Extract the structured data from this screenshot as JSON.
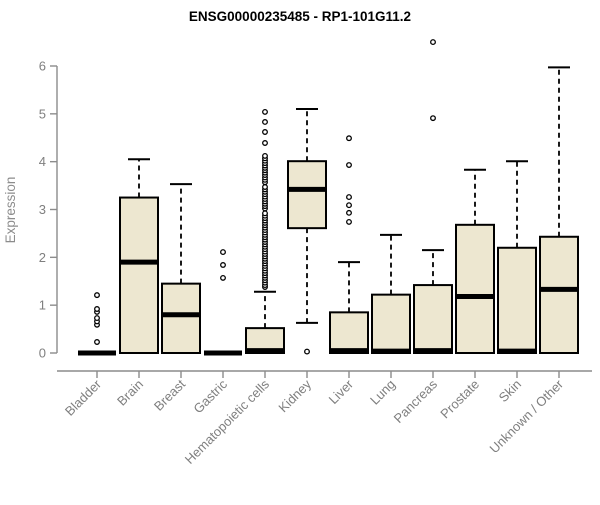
{
  "chart_data": {
    "type": "boxplot",
    "title": "ENSG00000235485 - RP1-101G11.2",
    "ylabel": "Expression",
    "xlabel": "",
    "ylim": [
      0,
      6.6
    ],
    "yticks": [
      0,
      1,
      2,
      3,
      4,
      5,
      6
    ],
    "grid": false,
    "legend": "none",
    "categories": [
      "Bladder",
      "Brain",
      "Breast",
      "Gastric",
      "Hematopoietic cells",
      "Kidney",
      "Liver",
      "Lung",
      "Pancreas",
      "Prostate",
      "Skin",
      "Unknown / Other"
    ],
    "boxes": [
      {
        "label": "Bladder",
        "whisker_low": 0,
        "q1": 0,
        "median": 0,
        "q3": 0,
        "whisker_high": 0,
        "outliers": [
          0.23,
          0.59,
          0.66,
          0.73,
          0.86,
          0.92,
          1.21
        ]
      },
      {
        "label": "Brain",
        "whisker_low": 0,
        "q1": 0,
        "median": 1.9,
        "q3": 3.25,
        "whisker_high": 4.05,
        "outliers": []
      },
      {
        "label": "Breast",
        "whisker_low": 0,
        "q1": 0,
        "median": 0.8,
        "q3": 1.45,
        "whisker_high": 3.53,
        "outliers": []
      },
      {
        "label": "Gastric",
        "whisker_low": 0,
        "q1": 0,
        "median": 0,
        "q3": 0,
        "whisker_high": 0,
        "outliers": [
          1.57,
          1.84,
          2.11
        ]
      },
      {
        "label": "Hematopoietic cells",
        "whisker_low": 0,
        "q1": 0,
        "median": 0.05,
        "q3": 0.52,
        "whisker_high": 1.28,
        "outliers": [
          1.38,
          1.42,
          1.47,
          1.52,
          1.57,
          1.62,
          1.67,
          1.72,
          1.77,
          1.82,
          1.87,
          1.92,
          1.97,
          2.02,
          2.07,
          2.12,
          2.17,
          2.22,
          2.27,
          2.32,
          2.37,
          2.42,
          2.47,
          2.52,
          2.57,
          2.62,
          2.67,
          2.72,
          2.77,
          2.82,
          2.87,
          2.92,
          3.02,
          3.07,
          3.12,
          3.17,
          3.22,
          3.27,
          3.32,
          3.37,
          3.42,
          3.47,
          3.57,
          3.62,
          3.67,
          3.72,
          3.77,
          3.82,
          3.87,
          3.92,
          3.97,
          4.02,
          4.07,
          4.12,
          4.39,
          4.62,
          4.83,
          5.04
        ]
      },
      {
        "label": "Kidney",
        "whisker_low": 0.63,
        "q1": 2.61,
        "median": 3.42,
        "q3": 4.01,
        "whisker_high": 5.1,
        "outliers": [
          0.03
        ]
      },
      {
        "label": "Liver",
        "whisker_low": 0,
        "q1": 0,
        "median": 0.05,
        "q3": 0.85,
        "whisker_high": 1.9,
        "outliers": [
          2.74,
          2.93,
          3.09,
          3.26,
          3.93,
          4.49
        ]
      },
      {
        "label": "Lung",
        "whisker_low": 0,
        "q1": 0,
        "median": 0.04,
        "q3": 1.22,
        "whisker_high": 2.47,
        "outliers": []
      },
      {
        "label": "Pancreas",
        "whisker_low": 0,
        "q1": 0,
        "median": 0.05,
        "q3": 1.42,
        "whisker_high": 2.15,
        "outliers": [
          4.91,
          6.5
        ]
      },
      {
        "label": "Prostate",
        "whisker_low": 0,
        "q1": 0,
        "median": 1.18,
        "q3": 2.68,
        "whisker_high": 3.83,
        "outliers": []
      },
      {
        "label": "Skin",
        "whisker_low": 0,
        "q1": 0,
        "median": 0.04,
        "q3": 2.2,
        "whisker_high": 4.01,
        "outliers": []
      },
      {
        "label": "Unknown / Other",
        "whisker_low": 0,
        "q1": 0,
        "median": 1.33,
        "q3": 2.43,
        "whisker_high": 5.97,
        "outliers": []
      }
    ]
  },
  "style": {
    "box_fill": "#EDE7D0",
    "box_stroke": "#000000",
    "median_color": "#000000",
    "whisker_color": "#000000",
    "outlier_stroke": "#000000",
    "outlier_fill": "#ffffff",
    "axis_color": "#8c8c8c",
    "tick_text_color": "#7f7f7f",
    "title_color": "#000000",
    "background": "#ffffff"
  }
}
